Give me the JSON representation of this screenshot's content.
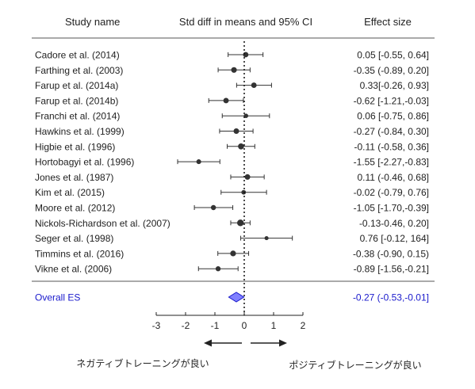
{
  "chart_data": {
    "type": "forest",
    "header": {
      "study": "Study name",
      "plot": "Std diff in means and 95% CI",
      "effect": "Effect size"
    },
    "xlim": [
      -3,
      2
    ],
    "ticks": [
      -3,
      -2,
      -1,
      0,
      1,
      2
    ],
    "studies": [
      {
        "name": "Cadore et al. (2014)",
        "label": "0.05 [-0.55, 0.64]",
        "es": 0.05,
        "lo": -0.55,
        "hi": 0.64
      },
      {
        "name": "Farthing et al. (2003)",
        "label": "-0.35 (-0.89, 0.20]",
        "es": -0.35,
        "lo": -0.89,
        "hi": 0.2
      },
      {
        "name": "Farup et al. (2014a)",
        "label": "0.33[-0.26, 0.93]",
        "es": 0.33,
        "lo": -0.26,
        "hi": 0.93
      },
      {
        "name": "Farup et al. (2014b)",
        "label": "-0.62 [-1.21,-0.03]",
        "es": -0.62,
        "lo": -1.21,
        "hi": -0.03
      },
      {
        "name": "Franchi et al. (2014)",
        "label": "0.06 [-0.75, 0.86]",
        "es": 0.06,
        "lo": -0.75,
        "hi": 0.86
      },
      {
        "name": "Hawkins et al. (1999)",
        "label": "-0.27 (-0.84, 0.30]",
        "es": -0.27,
        "lo": -0.84,
        "hi": 0.3
      },
      {
        "name": "Higbie et al. (1996)",
        "label": "-0.11 (-0.58, 0.36]",
        "es": -0.11,
        "lo": -0.58,
        "hi": 0.36
      },
      {
        "name": "Hortobagyi et al. (1996)",
        "label": "-1.55 [-2.27,-0.83]",
        "es": -1.55,
        "lo": -2.27,
        "hi": -0.83
      },
      {
        "name": "Jones et al. (1987)",
        "label": "0.11 (-0.46, 0.68]",
        "es": 0.11,
        "lo": -0.46,
        "hi": 0.68
      },
      {
        "name": "Kim et al. (2015)",
        "label": "-0.02 (-0.79, 0.76]",
        "es": -0.02,
        "lo": -0.79,
        "hi": 0.76
      },
      {
        "name": "Moore et al. (2012)",
        "label": "-1.05 [-1.70,-0.39]",
        "es": -1.05,
        "lo": -1.7,
        "hi": -0.39
      },
      {
        "name": "Nickols-Richardson et al. (2007)",
        "label": "-0.13-0.46, 0.20]",
        "es": -0.13,
        "lo": -0.46,
        "hi": 0.2
      },
      {
        "name": "Seger et al. (1998)",
        "label": "0.76 [-0.12, 164]",
        "es": 0.76,
        "lo": -0.12,
        "hi": 1.64
      },
      {
        "name": "Timmins et al. (2016)",
        "label": "-0.38 (-0.90, 0.15)",
        "es": -0.38,
        "lo": -0.9,
        "hi": 0.15
      },
      {
        "name": "Vikne et al. (2006)",
        "label": "-0.89 [-1.56,-0.21]",
        "es": -0.89,
        "lo": -1.56,
        "hi": -0.21
      }
    ],
    "overall": {
      "name": "Overall ES",
      "label": "-0.27 (-0.53,-0.01]",
      "es": -0.27,
      "lo": -0.53,
      "hi": -0.01
    },
    "direction_labels": {
      "negative": "ネガティブトレーニングが良い",
      "positive": "ポジティブトレーニングが良い"
    },
    "colors": {
      "overall": "#1a1acc",
      "diamond_fill": "#8080ff",
      "marker": "#333333"
    }
  }
}
